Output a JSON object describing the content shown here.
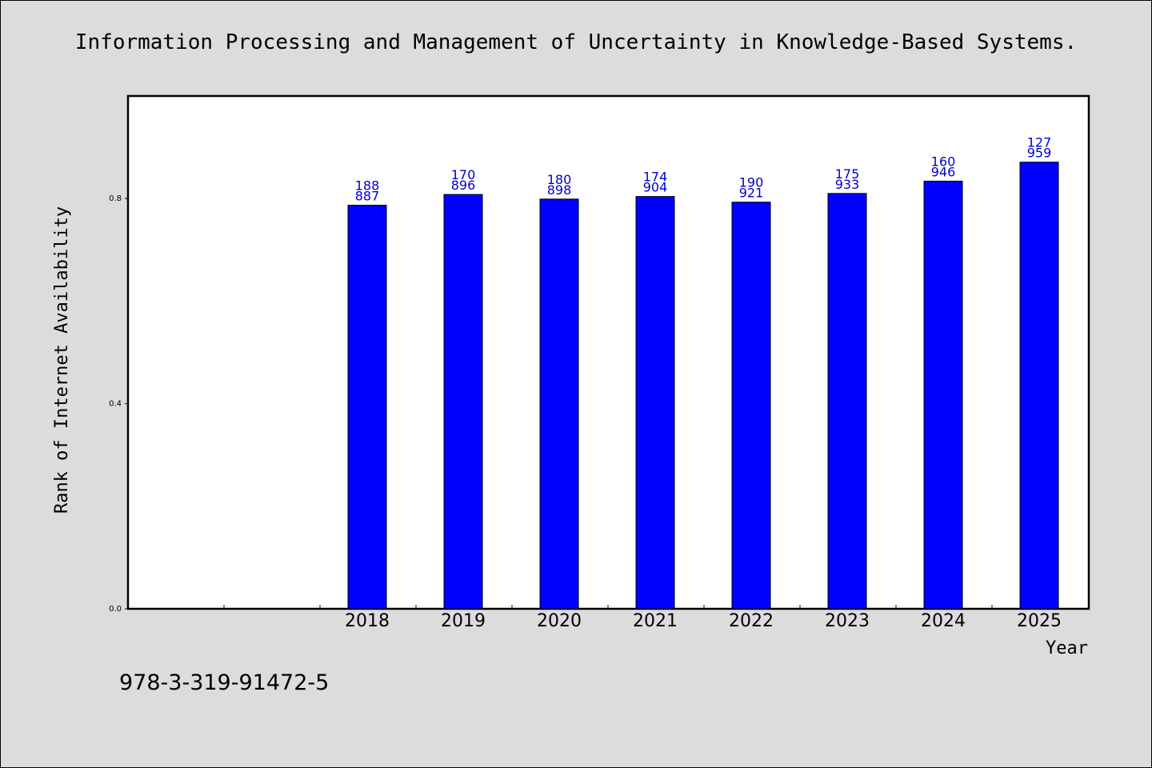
{
  "chart_data": {
    "type": "bar",
    "title": "Information Processing and Management of Uncertainty in Knowledge-Based Systems.",
    "xlabel": "Year",
    "ylabel": "Rank of Internet Availability",
    "categories": [
      "2018",
      "2019",
      "2020",
      "2021",
      "2022",
      "2023",
      "2024",
      "2025"
    ],
    "values": [
      0.787,
      0.808,
      0.799,
      0.804,
      0.793,
      0.81,
      0.834,
      0.871
    ],
    "data_labels": [
      [
        "188",
        "887"
      ],
      [
        "170",
        "896"
      ],
      [
        "180",
        "898"
      ],
      [
        "174",
        "904"
      ],
      [
        "190",
        "921"
      ],
      [
        "175",
        "933"
      ],
      [
        "160",
        "946"
      ],
      [
        "127",
        "959"
      ]
    ],
    "yticks": [
      "0.0",
      "0.4",
      "0.8"
    ],
    "ytick_values": [
      0,
      0.4,
      0.8
    ],
    "ylim": [
      0,
      1.0
    ],
    "grid": false,
    "bar_color": "#0000ff",
    "label_color": "#0000cc",
    "background": "#dcdcdc",
    "plot_background": "#ffffff"
  },
  "footnote": "978-3-319-91472-5"
}
